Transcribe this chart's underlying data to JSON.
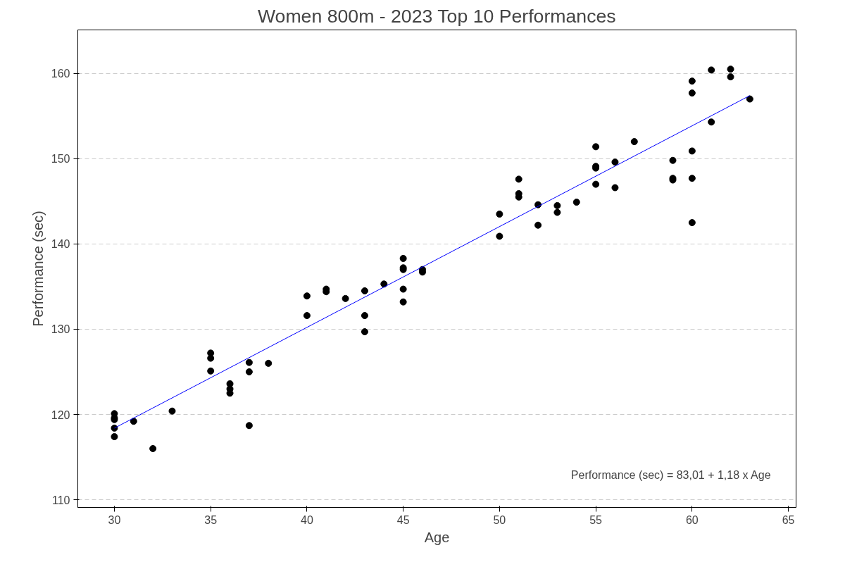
{
  "chart_data": {
    "type": "scatter",
    "title": "Women 800m - 2023 Top 10 Performances",
    "xlabel": "Age",
    "ylabel": "Performance (sec)",
    "series": [
      {
        "marker": "circle",
        "color": "#000000",
        "x": [
          30,
          30,
          30,
          30,
          30,
          31,
          32,
          33,
          35,
          35,
          35,
          36,
          36,
          36,
          37,
          37,
          37,
          38,
          40,
          40,
          41,
          41,
          42,
          43,
          43,
          43,
          44,
          45,
          45,
          45,
          45,
          45,
          46,
          46,
          50,
          50,
          51,
          51,
          51,
          52,
          52,
          53,
          53,
          54,
          55,
          55,
          55,
          55,
          56,
          56,
          57,
          59,
          59,
          59,
          60,
          60,
          60,
          60,
          60,
          61,
          61,
          62,
          62,
          63
        ],
        "values": [
          120.1,
          119.6,
          119.4,
          118.4,
          117.4,
          119.2,
          116.0,
          120.4,
          127.2,
          126.6,
          125.1,
          123.6,
          123.0,
          122.5,
          126.1,
          125.0,
          118.7,
          126.0,
          133.9,
          131.6,
          134.7,
          134.4,
          133.6,
          134.5,
          131.6,
          129.7,
          135.3,
          138.3,
          137.2,
          137.0,
          134.7,
          133.2,
          137.0,
          136.7,
          143.5,
          140.9,
          147.6,
          145.9,
          145.5,
          144.6,
          142.2,
          144.5,
          143.7,
          144.9,
          151.4,
          149.1,
          148.9,
          147.0,
          149.6,
          146.6,
          152.0,
          149.8,
          147.7,
          147.5,
          159.1,
          157.7,
          150.9,
          147.7,
          142.5,
          160.4,
          154.3,
          160.5,
          159.6,
          157.0
        ]
      },
      {
        "type": "line",
        "color": "#0000ff",
        "x": [
          30,
          63
        ],
        "values": [
          118.4,
          157.4
        ]
      }
    ],
    "xlim": [
      28.1,
      65.4
    ],
    "ylim": [
      109.1,
      165.1
    ],
    "xticks": [
      30,
      35,
      40,
      45,
      50,
      55,
      60,
      65
    ],
    "yticks": [
      110,
      120,
      130,
      140,
      150,
      160
    ],
    "grid": "y",
    "annotations": [
      "Performance (sec) =  83,01 + 1,18 x Age"
    ]
  }
}
